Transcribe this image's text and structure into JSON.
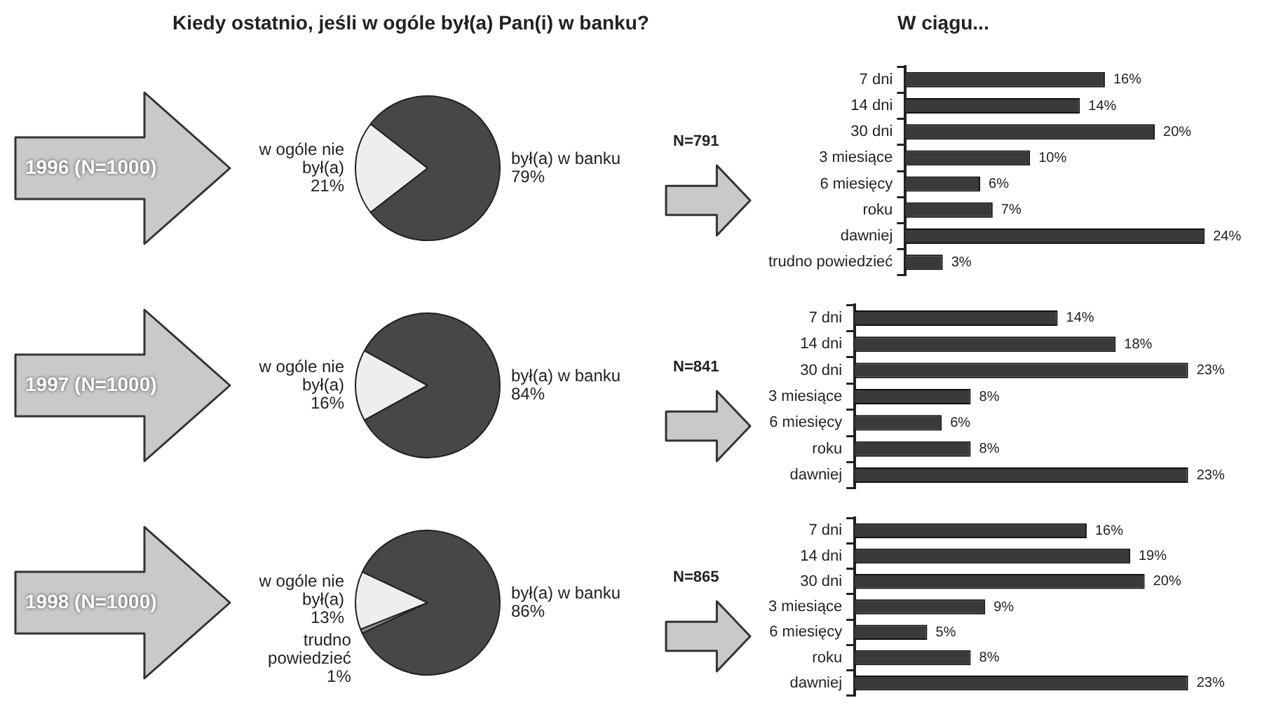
{
  "chart_data": [
    {
      "type": "pie",
      "title": "Kiedy ostatnio, jeśli w ogóle był(a) Pan(i) w banku?",
      "subtitle": "1996 (N=1000)",
      "categories": [
        "w ogóle nie był(a)",
        "był(a) w banku"
      ],
      "values": [
        21,
        79
      ],
      "colors": [
        "#eeeeee",
        "#474747"
      ],
      "value_labels": [
        "21%",
        "79%"
      ]
    },
    {
      "type": "bar",
      "orientation": "horizontal",
      "title": "W ciągu...",
      "subtitle": "N=791",
      "categories": [
        "7 dni",
        "14 dni",
        "30 dni",
        "3 miesiące",
        "6 miesięcy",
        "roku",
        "dawniej",
        "trudno powiedzieć"
      ],
      "values": [
        16,
        14,
        20,
        10,
        6,
        7,
        24,
        3
      ],
      "color": "#3a3a3a",
      "value_labels": [
        "16%",
        "14%",
        "20%",
        "10%",
        "6%",
        "7%",
        "24%",
        "3%"
      ],
      "tick_labels": "y"
    },
    {
      "type": "pie",
      "subtitle": "1997 (N=1000)",
      "categories": [
        "w ogóle nie był(a)",
        "był(a) w banku"
      ],
      "values": [
        16,
        84
      ],
      "colors": [
        "#eeeeee",
        "#474747"
      ],
      "value_labels": [
        "16%",
        "84%"
      ]
    },
    {
      "type": "bar",
      "orientation": "horizontal",
      "subtitle": "N=841",
      "categories": [
        "7 dni",
        "14 dni",
        "30 dni",
        "3 miesiące",
        "6 miesięcy",
        "roku",
        "dawniej"
      ],
      "values": [
        14,
        18,
        23,
        8,
        6,
        8,
        23
      ],
      "color": "#3a3a3a",
      "value_labels": [
        "14%",
        "18%",
        "23%",
        "8%",
        "6%",
        "8%",
        "23%"
      ],
      "tick_labels": "y"
    },
    {
      "type": "pie",
      "subtitle": "1998 (N=1000)",
      "categories": [
        "trudno powiedzieć",
        "w ogóle nie był(a)",
        "był(a) w banku"
      ],
      "values": [
        1,
        13,
        86
      ],
      "colors": [
        "#8a8a8a",
        "#eeeeee",
        "#474747"
      ],
      "value_labels": [
        "1%",
        "13%",
        "86%"
      ]
    },
    {
      "type": "bar",
      "orientation": "horizontal",
      "subtitle": "N=865",
      "categories": [
        "7 dni",
        "14 dni",
        "30 dni",
        "3 miesiące",
        "6 miesięcy",
        "roku",
        "dawniej"
      ],
      "values": [
        16,
        19,
        20,
        9,
        5,
        8,
        23
      ],
      "color": "#3a3a3a",
      "value_labels": [
        "16%",
        "19%",
        "20%",
        "9%",
        "5%",
        "8%",
        "23%"
      ],
      "tick_labels": "y"
    }
  ]
}
